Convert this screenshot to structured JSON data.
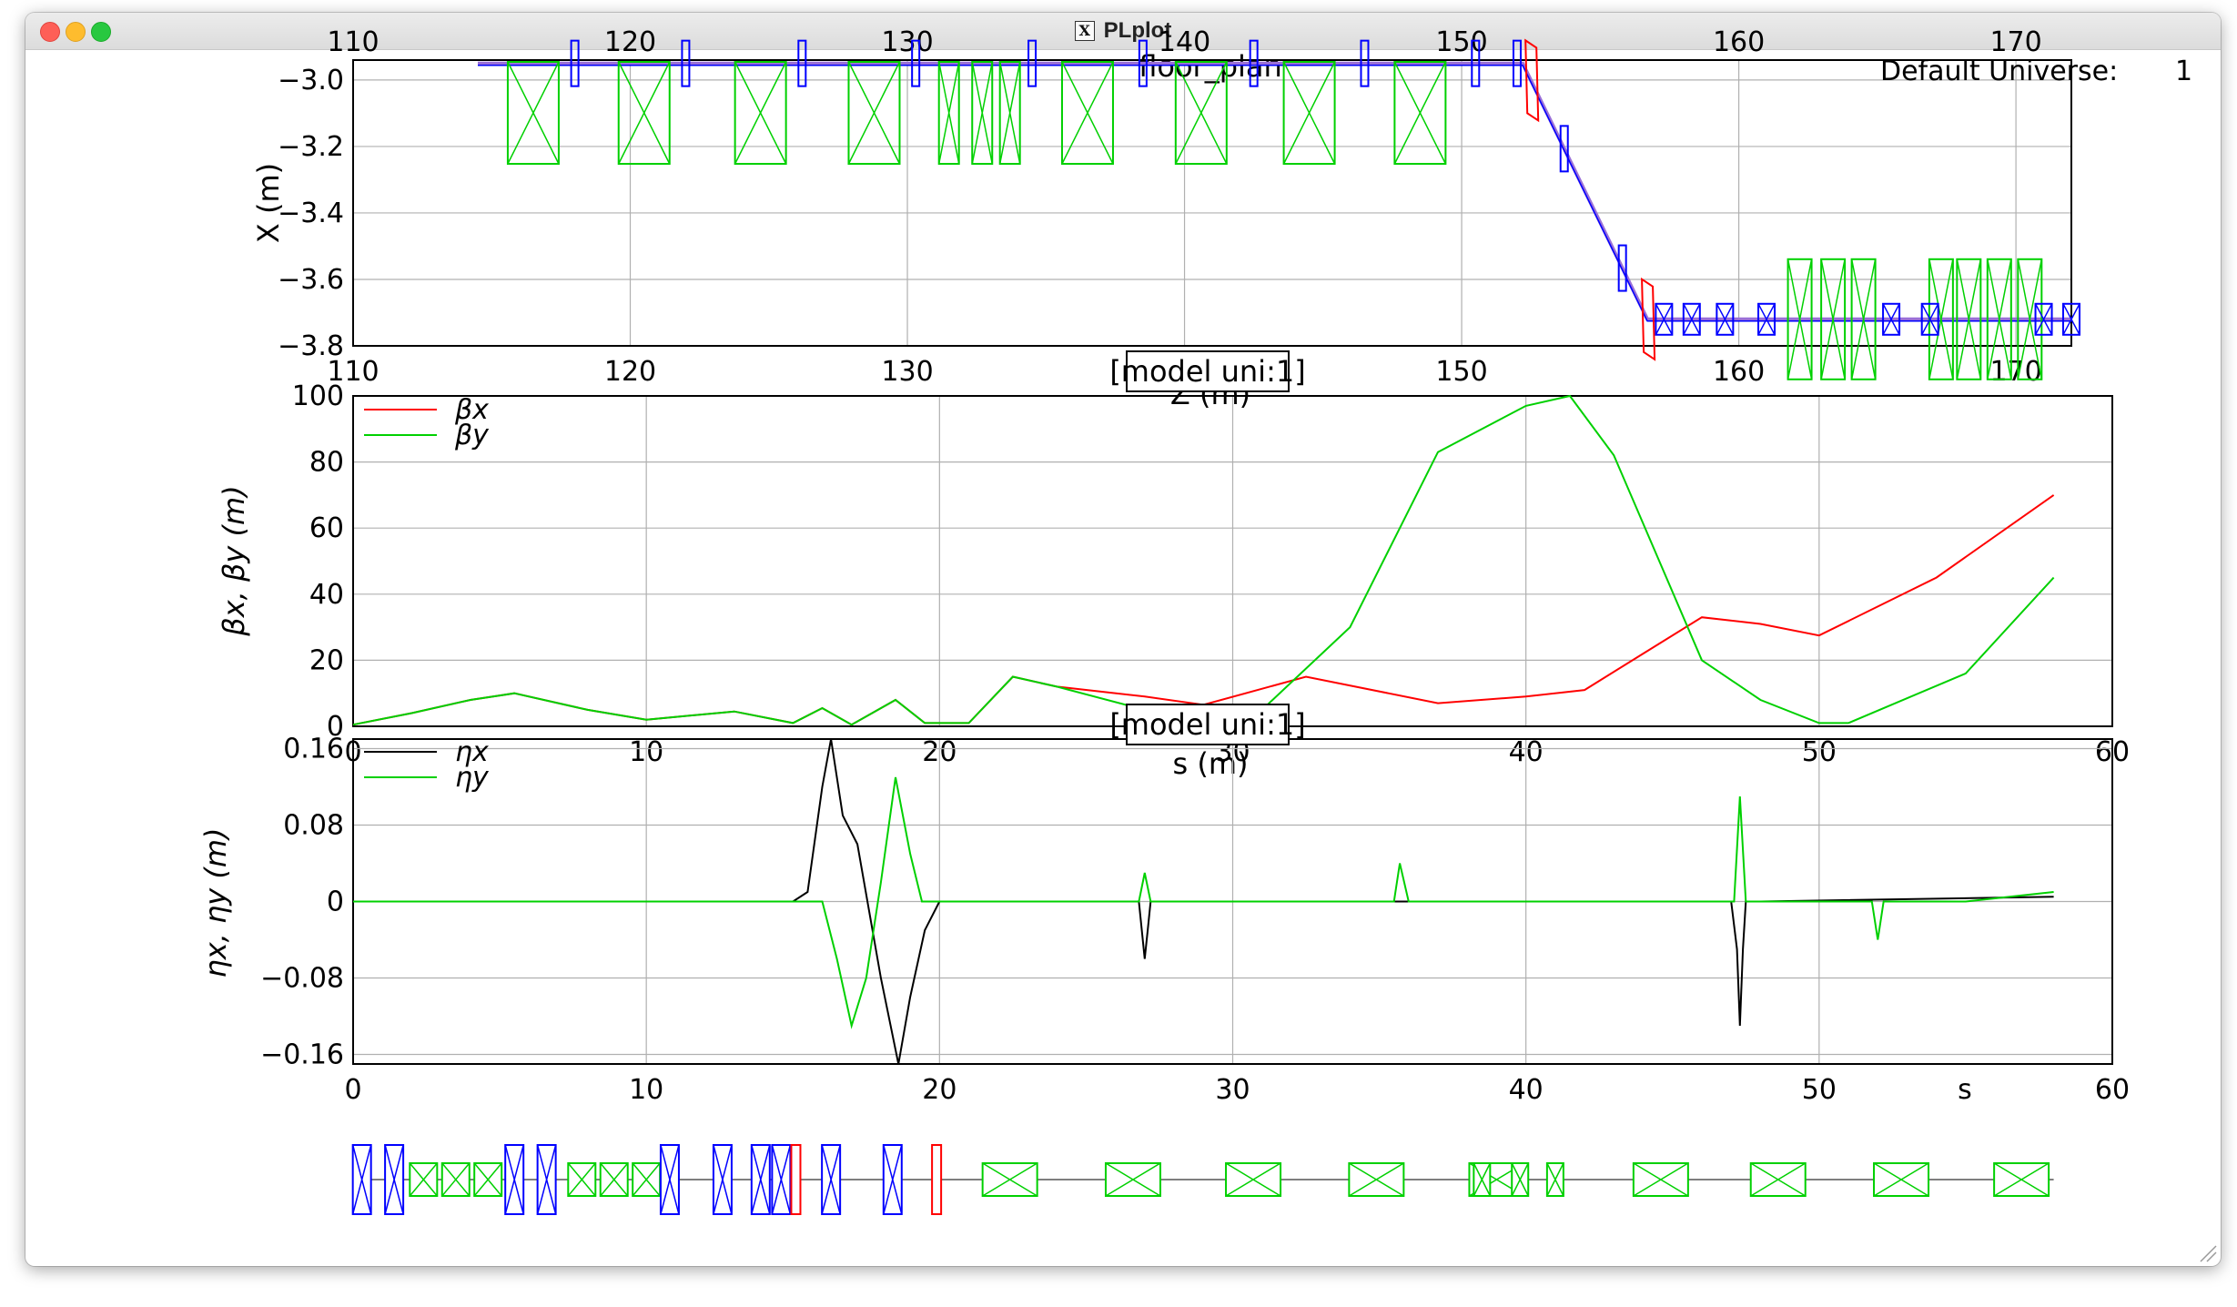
{
  "window": {
    "title": "PLplot",
    "x_icon": "x11-window-icon",
    "universe_label": "Default Universe:",
    "universe_value": "1"
  },
  "colors": {
    "red": "#ff0000",
    "green": "#00d000",
    "black": "#000000",
    "blue": "#0000ff",
    "purple": "#9a6fd8",
    "grid": "#b0b0b0"
  },
  "chart_data": [
    {
      "type": "line",
      "name": "floor_plan",
      "title": "floor_plan",
      "xlabel": "Z (m)",
      "ylabel": "X (m)",
      "xlim": [
        110,
        172
      ],
      "ylim": [
        -3.8,
        -2.94
      ],
      "xticks": [
        "110",
        "120",
        "130",
        "140",
        "150",
        "160",
        "170"
      ],
      "yticks": [
        "−3.0",
        "−3.2",
        "−3.4",
        "−3.6",
        "−3.8"
      ],
      "ytick_values": [
        -3.0,
        -3.2,
        -3.4,
        -3.6,
        -3.8
      ],
      "beamline": [
        [
          114.5,
          -2.95
        ],
        [
          152.2,
          -2.95
        ],
        [
          156.7,
          -3.72
        ],
        [
          172,
          -3.72
        ]
      ],
      "quads_green": [
        116.5,
        120.5,
        124.7,
        128.8,
        131.5,
        132.7,
        133.7,
        136.5,
        140.6,
        144.5,
        148.5,
        162.2,
        163.4,
        164.5,
        167.3,
        168.3,
        169.4,
        170.5
      ],
      "bend_red": [
        152.5,
        156.7
      ],
      "sext_blue": [
        118,
        122,
        126.2,
        130.3,
        134.5,
        138.5,
        142.5,
        146.5,
        150.5,
        152,
        153.7,
        155.8,
        157.3,
        158.3,
        159.5,
        161,
        165.5,
        166.9,
        171,
        172
      ]
    },
    {
      "type": "line",
      "name": "beta",
      "label": "[model uni:1]",
      "xlabel": "s (m)",
      "ylabel": "βx, βy (m)",
      "xlim": [
        0,
        60
      ],
      "ylim": [
        0,
        100
      ],
      "xticks": [
        "0",
        "10",
        "20",
        "30",
        "40",
        "50",
        "60"
      ],
      "yticks": [
        "0",
        "20",
        "40",
        "60",
        "80",
        "100"
      ],
      "series": [
        {
          "name": "βx",
          "color": "#ff0000",
          "x": [
            0,
            2,
            4,
            5.5,
            8,
            10,
            13,
            15,
            16,
            17,
            18.5,
            19.5,
            21,
            22.5,
            24,
            27,
            29,
            32.5,
            37,
            40,
            42,
            44,
            46,
            48,
            50,
            54,
            58
          ],
          "y": [
            0.5,
            4,
            8,
            10,
            5,
            2,
            4.5,
            1,
            5.5,
            0.5,
            8,
            1,
            1,
            15,
            12,
            9,
            6.5,
            15,
            7,
            9,
            11,
            22,
            33,
            31,
            27.5,
            45,
            70
          ]
        },
        {
          "name": "βy",
          "color": "#00d000",
          "x": [
            0,
            2,
            4,
            5.5,
            8,
            10,
            13,
            15,
            16,
            17,
            18.5,
            19.5,
            21,
            22.5,
            24,
            27,
            29,
            31,
            34,
            37,
            40,
            41.5,
            43,
            46,
            48,
            50,
            51,
            55,
            58
          ],
          "y": [
            0.5,
            4,
            8,
            10,
            5,
            2,
            4.5,
            1,
            5.5,
            0.5,
            8,
            1,
            1,
            15,
            12,
            5,
            2,
            5,
            30,
            83,
            97,
            100,
            82,
            20,
            8,
            1,
            1,
            16,
            45
          ]
        }
      ]
    },
    {
      "type": "line",
      "name": "dispersion",
      "label": "[model uni:1]",
      "xlabel": "s",
      "ylabel": "ηx, ηy (m)",
      "xlim": [
        0,
        60
      ],
      "ylim": [
        -0.17,
        0.17
      ],
      "xticks": [
        "0",
        "10",
        "20",
        "30",
        "40",
        "50",
        "60"
      ],
      "yticks": [
        "0.16",
        "0.08",
        "0",
        "−0.08",
        "−0.16"
      ],
      "ytick_values": [
        0.16,
        0.08,
        0,
        -0.08,
        -0.16
      ],
      "series": [
        {
          "name": "ηx",
          "color": "#000000",
          "x": [
            0,
            15,
            15.5,
            16,
            16.3,
            16.7,
            17.2,
            18,
            18.6,
            19,
            19.5,
            20,
            26.8,
            26.9,
            27,
            27.1,
            27.2,
            28,
            47,
            47.2,
            47.3,
            47.4,
            47.5,
            48,
            58
          ],
          "y": [
            0,
            0,
            0.01,
            0.12,
            0.17,
            0.09,
            0.06,
            -0.08,
            -0.17,
            -0.1,
            -0.03,
            0,
            0,
            -0.03,
            -0.06,
            -0.03,
            0,
            0,
            0,
            -0.05,
            -0.13,
            -0.05,
            0,
            0,
            0.005
          ]
        },
        {
          "name": "ηy",
          "color": "#00d000",
          "x": [
            0,
            15.5,
            16,
            16.5,
            17,
            17.5,
            18,
            18.5,
            19,
            19.4,
            20,
            26.8,
            27,
            27.2,
            35,
            35.5,
            35.7,
            36,
            47,
            47.1,
            47.3,
            47.5,
            47.8,
            51.8,
            52,
            52.2,
            55,
            58
          ],
          "y": [
            0,
            0,
            0,
            -0.06,
            -0.13,
            -0.08,
            0.02,
            0.13,
            0.05,
            0,
            0,
            0,
            0.03,
            0,
            0,
            0,
            0.04,
            0,
            0,
            0,
            0.11,
            0,
            0,
            0,
            -0.04,
            0,
            0,
            0.01
          ]
        }
      ]
    }
  ],
  "lattice": {
    "s_range": [
      0,
      58
    ],
    "blue": [
      0.3,
      1.4,
      5.5,
      6.6,
      10.8,
      12.6,
      13.9,
      14.6,
      16.3,
      18.4
    ],
    "red": [
      15.1,
      19.9
    ],
    "green_small": [
      2.4,
      3.5,
      4.6,
      7.8,
      8.9,
      10.0
    ],
    "green_large": [
      22.4,
      26.6,
      30.7,
      34.9,
      39.0,
      44.6,
      48.6,
      52.8,
      56.9
    ],
    "green_thin": [
      38.5,
      39.8,
      41.0
    ]
  }
}
